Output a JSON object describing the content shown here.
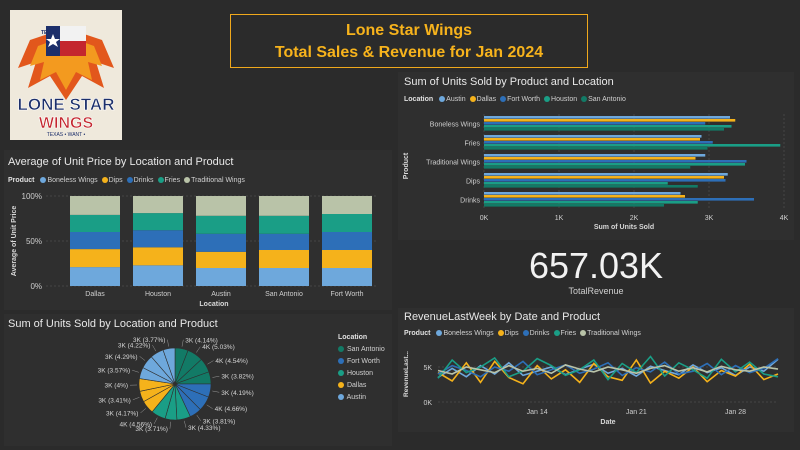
{
  "title": {
    "line1": "Lone Star Wings",
    "line2": "Total Sales & Revenue for Jan 2024"
  },
  "logo": {
    "top": "TEXAS",
    "main1": "LONE STAR",
    "main2": "WINGS",
    "sub": "TEXAS • WANT •"
  },
  "colors": {
    "Boneless Wings": "#6ea8dc",
    "Dips": "#f5b21b",
    "Drinks": "#2d6fb8",
    "Fries": "#1a9e86",
    "Traditional Wings": "#b9c3a8",
    "San Antonio": "#127a66",
    "Fort Worth": "#2d6fb8",
    "Houston": "#1a9e86",
    "Dallas": "#f5b21b",
    "Austin": "#6ea8dc"
  },
  "kpi": {
    "value": "657.03K",
    "label": "TotalRevenue"
  },
  "chart_data": [
    {
      "id": "avg_price",
      "type": "bar",
      "stacked": "100%",
      "title": "Average of Unit Price by Location and Product",
      "legend_title": "Product",
      "categories": [
        "Dallas",
        "Houston",
        "Austin",
        "San Antonio",
        "Fort Worth"
      ],
      "series": [
        {
          "name": "Boneless Wings",
          "values": [
            0.21,
            0.23,
            0.2,
            0.2,
            0.2
          ]
        },
        {
          "name": "Dips",
          "values": [
            0.2,
            0.2,
            0.18,
            0.2,
            0.2
          ]
        },
        {
          "name": "Drinks",
          "values": [
            0.19,
            0.19,
            0.2,
            0.18,
            0.2
          ]
        },
        {
          "name": "Fries",
          "values": [
            0.19,
            0.19,
            0.2,
            0.2,
            0.2
          ]
        },
        {
          "name": "Traditional Wings",
          "values": [
            0.21,
            0.19,
            0.22,
            0.22,
            0.2
          ]
        }
      ],
      "yticks": [
        "0%",
        "50%",
        "100%"
      ],
      "xlabel": "Location",
      "ylabel": "Average of Unit Price"
    },
    {
      "id": "units_hbar",
      "type": "bar",
      "orientation": "horizontal",
      "title": "Sum of Units Sold by Product and Location",
      "legend_title": "Location",
      "categories": [
        "Boneless Wings",
        "Fries",
        "Traditional Wings",
        "Dips",
        "Drinks"
      ],
      "series": [
        {
          "name": "Austin",
          "values": [
            3280,
            2900,
            2950,
            3250,
            2620
          ]
        },
        {
          "name": "Dallas",
          "values": [
            3350,
            2880,
            2820,
            3200,
            2680
          ]
        },
        {
          "name": "Fort Worth",
          "values": [
            2950,
            3050,
            3500,
            3220,
            3600
          ]
        },
        {
          "name": "Houston",
          "values": [
            3300,
            3950,
            3480,
            2450,
            2850
          ]
        },
        {
          "name": "San Antonio",
          "values": [
            3200,
            2980,
            2750,
            2850,
            2400
          ]
        }
      ],
      "xticks": [
        "0K",
        "1K",
        "2K",
        "3K",
        "4K"
      ],
      "xlim": [
        0,
        4000
      ],
      "xlabel": "Sum of Units Sold",
      "ylabel": "Product"
    },
    {
      "id": "units_pie",
      "type": "pie",
      "title": "Sum of Units Sold by Location and Product",
      "legend_title": "Location",
      "legend": [
        "San Antonio",
        "Fort Worth",
        "Houston",
        "Dallas",
        "Austin"
      ],
      "slices": [
        {
          "label": "3K (4.14%)",
          "value": 4.14,
          "group": "San Antonio"
        },
        {
          "label": "4K (5.03%)",
          "value": 5.03,
          "group": "San Antonio"
        },
        {
          "label": "4K (4.54%)",
          "value": 4.54,
          "group": "San Antonio"
        },
        {
          "label": "3K (3.82%)",
          "value": 3.82,
          "group": "San Antonio"
        },
        {
          "label": "3K (4.19%)",
          "value": 4.19,
          "group": "Fort Worth"
        },
        {
          "label": "4K (4.66%)",
          "value": 4.66,
          "group": "Fort Worth"
        },
        {
          "label": "3K (3.81%)",
          "value": 3.81,
          "group": "Fort Worth"
        },
        {
          "label": "3K (4.33%)",
          "value": 4.33,
          "group": "Houston"
        },
        {
          "label": "3K (3.71%)",
          "value": 3.71,
          "group": "Houston"
        },
        {
          "label": "4K (4.56%)",
          "value": 4.56,
          "group": "Houston"
        },
        {
          "label": "3K (4.17%)",
          "value": 4.17,
          "group": "Dallas"
        },
        {
          "label": "3K (3.41%)",
          "value": 3.41,
          "group": "Dallas"
        },
        {
          "label": "3K (4%)",
          "value": 4.0,
          "group": "Dallas"
        },
        {
          "label": "3K (3.57%)",
          "value": 3.57,
          "group": "Austin"
        },
        {
          "label": "3K (4.29%)",
          "value": 4.29,
          "group": "Austin"
        },
        {
          "label": "3K (4.22%)",
          "value": 4.22,
          "group": "Austin"
        },
        {
          "label": "3K (3.77%)",
          "value": 3.77,
          "group": "Austin"
        }
      ]
    },
    {
      "id": "revenue_line",
      "type": "line",
      "title": "RevenueLastWeek by Date and Product",
      "legend_title": "Product",
      "x_start": "2024-01-07",
      "xticks": [
        "Jan 14",
        "Jan 21",
        "Jan 28"
      ],
      "yticks": [
        "0K",
        "5K"
      ],
      "ylim": [
        0,
        8000
      ],
      "xlabel": "Date",
      "ylabel": "RevenueLast...",
      "series": [
        {
          "name": "Boneless Wings",
          "values": [
            3500,
            4800,
            3600,
            5200,
            4000,
            5600,
            3800,
            4400,
            5000,
            3900,
            4700,
            5400,
            4100,
            4800,
            3700,
            5100,
            4500,
            3900,
            5300,
            4200,
            4900,
            3800,
            5000,
            4400,
            6100
          ]
        },
        {
          "name": "Dips",
          "values": [
            4200,
            3000,
            5600,
            2800,
            5800,
            3500,
            2600,
            5200,
            3300,
            4600,
            2800,
            5500,
            3600,
            3100,
            6000,
            2700,
            4400,
            3400,
            5000,
            2900,
            4500,
            3700,
            5400,
            3200,
            4000
          ]
        },
        {
          "name": "Drinks",
          "values": [
            4000,
            5200,
            4500,
            3600,
            5000,
            4400,
            5800,
            3900,
            4600,
            5300,
            4100,
            4700,
            5600,
            3800,
            4900,
            4300,
            5700,
            4000,
            4400,
            5500,
            3900,
            5200,
            4200,
            4800,
            6200
          ]
        },
        {
          "name": "Fries",
          "values": [
            3400,
            6000,
            4200,
            5000,
            6300,
            3600,
            4400,
            6200,
            5200,
            3800,
            4600,
            6000,
            3200,
            5500,
            4200,
            6500,
            3700,
            5600,
            4600,
            3400,
            6100,
            4300,
            5700,
            4000,
            3600
          ]
        },
        {
          "name": "Traditional Wings",
          "values": [
            4500,
            4000,
            5000,
            4600,
            4200,
            5200,
            4400,
            4800,
            4100,
            5300,
            4700,
            4300,
            5000,
            4600,
            4100,
            4800,
            5200,
            4400,
            4900,
            4300,
            5100,
            4600,
            4400,
            5000,
            4700
          ]
        }
      ]
    }
  ]
}
